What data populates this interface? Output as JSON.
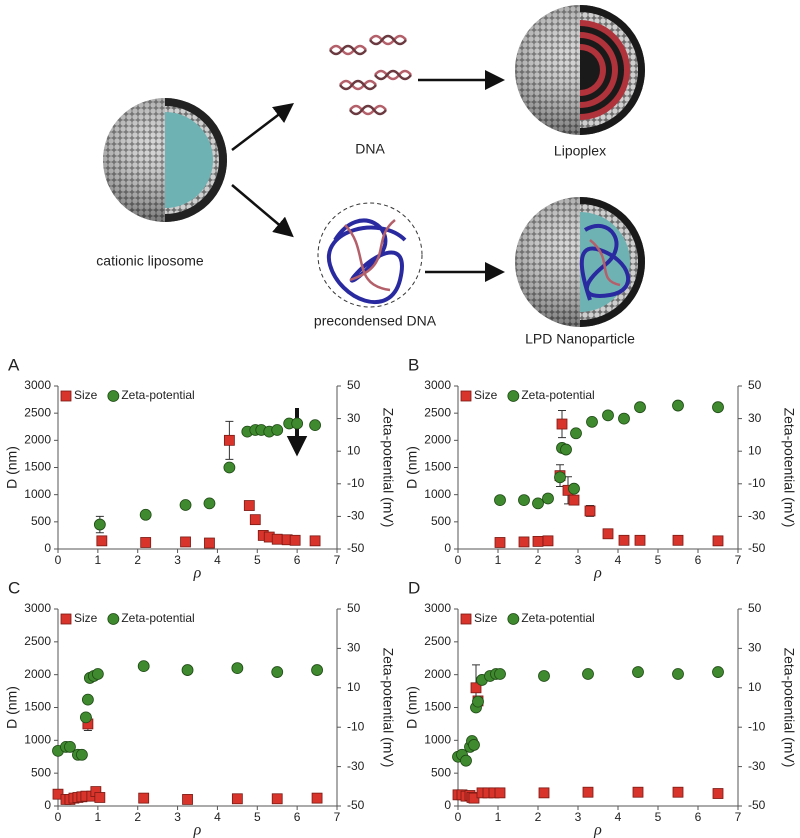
{
  "schematic": {
    "labels": [
      "DNA",
      "Lipoplex",
      "cationic liposome",
      "precondensed DNA",
      "LPD Nanoparticle"
    ]
  },
  "chart_data": [
    {
      "type": "scatter",
      "panel": "A",
      "xlabel": "ρ",
      "ylabel": "D (nm)",
      "y2label": "Zeta-potential (mV)",
      "xlim": [
        0,
        7
      ],
      "xticks": [
        0,
        1,
        2,
        3,
        4,
        5,
        6,
        7
      ],
      "ylim": [
        0,
        3000
      ],
      "yticks": [
        0,
        500,
        1000,
        1500,
        2000,
        2500,
        3000
      ],
      "y2lim": [
        -50,
        50
      ],
      "y2ticks": [
        -50,
        -30,
        -10,
        10,
        30,
        50
      ],
      "series": [
        {
          "name": "Size",
          "color": "#d9342b",
          "marker": "square",
          "x": [
            1.1,
            2.2,
            3.2,
            3.8,
            4.3,
            4.8,
            4.95,
            5.15,
            5.3,
            5.5,
            5.75,
            5.95,
            6.45
          ],
          "values": [
            150,
            120,
            130,
            110,
            2000,
            800,
            540,
            250,
            220,
            180,
            170,
            160,
            150
          ],
          "errors": [
            null,
            null,
            null,
            null,
            350,
            null,
            null,
            null,
            null,
            null,
            null,
            null,
            null
          ]
        },
        {
          "name": "Zeta-potential",
          "color": "#3f8a2e",
          "marker": "circle",
          "axis": "y2",
          "x": [
            1.05,
            2.2,
            3.2,
            3.8,
            4.3,
            4.75,
            4.95,
            5.1,
            5.3,
            5.5,
            5.8,
            6.0,
            6.45
          ],
          "values": [
            -35,
            -29,
            -23,
            -22,
            0,
            22,
            23,
            23,
            22,
            23,
            27,
            27,
            26
          ],
          "errors": [
            5,
            null,
            null,
            null,
            null,
            null,
            null,
            null,
            null,
            null,
            null,
            null,
            null
          ]
        }
      ]
    },
    {
      "type": "scatter",
      "panel": "B",
      "xlabel": "ρ",
      "ylabel": "D (nm)",
      "y2label": "Zeta-potential (mV)",
      "xlim": [
        0,
        7
      ],
      "xticks": [
        0,
        1,
        2,
        3,
        4,
        5,
        6,
        7
      ],
      "ylim": [
        0,
        3000
      ],
      "yticks": [
        0,
        500,
        1000,
        1500,
        2000,
        2500,
        3000
      ],
      "y2lim": [
        -50,
        50
      ],
      "y2ticks": [
        -50,
        -30,
        -10,
        10,
        30,
        50
      ],
      "series": [
        {
          "name": "Size",
          "color": "#d9342b",
          "marker": "square",
          "x": [
            1.05,
            1.65,
            2.0,
            2.25,
            2.55,
            2.6,
            2.75,
            2.9,
            3.3,
            3.75,
            4.15,
            4.55,
            5.5,
            6.5
          ],
          "values": [
            120,
            130,
            140,
            150,
            1350,
            2300,
            1080,
            900,
            700,
            280,
            160,
            160,
            160,
            150
          ],
          "errors": [
            null,
            null,
            null,
            null,
            200,
            250,
            250,
            null,
            100,
            null,
            null,
            null,
            null,
            null
          ]
        },
        {
          "name": "Zeta-potential",
          "color": "#3f8a2e",
          "marker": "circle",
          "axis": "y2",
          "x": [
            1.05,
            1.65,
            2.0,
            2.25,
            2.55,
            2.6,
            2.7,
            2.9,
            2.95,
            3.35,
            3.75,
            4.15,
            4.55,
            5.5,
            6.5
          ],
          "values": [
            -20,
            -20,
            -22,
            -19,
            -6,
            12,
            11,
            -13,
            21,
            28,
            32,
            30,
            37,
            38,
            37
          ]
        }
      ]
    },
    {
      "type": "scatter",
      "panel": "C",
      "xlabel": "ρ",
      "ylabel": "D (nm)",
      "y2label": "Zeta-potential (mV)",
      "xlim": [
        0,
        7
      ],
      "xticks": [
        0,
        1,
        2,
        3,
        4,
        5,
        6,
        7
      ],
      "ylim": [
        0,
        3000
      ],
      "yticks": [
        0,
        500,
        1000,
        1500,
        2000,
        2500,
        3000
      ],
      "y2lim": [
        -50,
        50
      ],
      "y2ticks": [
        -50,
        -30,
        -10,
        10,
        30,
        50
      ],
      "series": [
        {
          "name": "Size",
          "color": "#d9342b",
          "marker": "square",
          "x": [
            0.0,
            0.2,
            0.3,
            0.4,
            0.5,
            0.6,
            0.7,
            0.75,
            0.85,
            0.95,
            1.05,
            2.15,
            3.25,
            4.5,
            5.5,
            6.5
          ],
          "values": [
            180,
            100,
            100,
            120,
            130,
            140,
            150,
            1250,
            150,
            220,
            130,
            120,
            100,
            110,
            110,
            120
          ],
          "errors": [
            null,
            null,
            null,
            null,
            null,
            null,
            null,
            100,
            null,
            null,
            null,
            null,
            null,
            null,
            null,
            null
          ]
        },
        {
          "name": "Zeta-potential",
          "color": "#3f8a2e",
          "marker": "circle",
          "axis": "y2",
          "x": [
            0.0,
            0.2,
            0.3,
            0.5,
            0.6,
            0.7,
            0.75,
            0.8,
            0.9,
            1.0,
            2.15,
            3.25,
            4.5,
            5.5,
            6.5
          ],
          "values": [
            -22,
            -20,
            -20,
            -24,
            -24,
            -5,
            4,
            15,
            16,
            17,
            21,
            19,
            20,
            18,
            19
          ]
        }
      ]
    },
    {
      "type": "scatter",
      "panel": "D",
      "xlabel": "ρ",
      "ylabel": "D (nm)",
      "y2label": "Zeta-potential (mV)",
      "xlim": [
        0,
        7
      ],
      "xticks": [
        0,
        1,
        2,
        3,
        4,
        5,
        6,
        7
      ],
      "ylim": [
        0,
        3000
      ],
      "yticks": [
        0,
        500,
        1000,
        1500,
        2000,
        2500,
        3000
      ],
      "y2lim": [
        -50,
        50
      ],
      "y2ticks": [
        -50,
        -30,
        -10,
        10,
        30,
        50
      ],
      "series": [
        {
          "name": "Size",
          "color": "#d9342b",
          "marker": "square",
          "x": [
            0.0,
            0.1,
            0.2,
            0.3,
            0.35,
            0.4,
            0.45,
            0.5,
            0.6,
            0.75,
            0.9,
            1.05,
            2.15,
            3.25,
            4.5,
            5.5,
            6.5
          ],
          "values": [
            170,
            170,
            150,
            160,
            130,
            120,
            1800,
            1600,
            200,
            200,
            200,
            200,
            200,
            210,
            210,
            210,
            190
          ],
          "errors": [
            null,
            null,
            null,
            null,
            null,
            null,
            350,
            null,
            null,
            null,
            null,
            null,
            null,
            null,
            null,
            null,
            null
          ]
        },
        {
          "name": "Zeta-potential",
          "color": "#3f8a2e",
          "marker": "circle",
          "axis": "y2",
          "x": [
            0.0,
            0.1,
            0.2,
            0.3,
            0.35,
            0.4,
            0.45,
            0.5,
            0.6,
            0.8,
            0.95,
            1.05,
            2.15,
            3.25,
            4.5,
            5.5,
            6.5
          ],
          "values": [
            -25,
            -24,
            -27,
            -20,
            -17,
            -19,
            0,
            3,
            14,
            16,
            17,
            17,
            16,
            17,
            18,
            17,
            18
          ]
        }
      ]
    }
  ]
}
